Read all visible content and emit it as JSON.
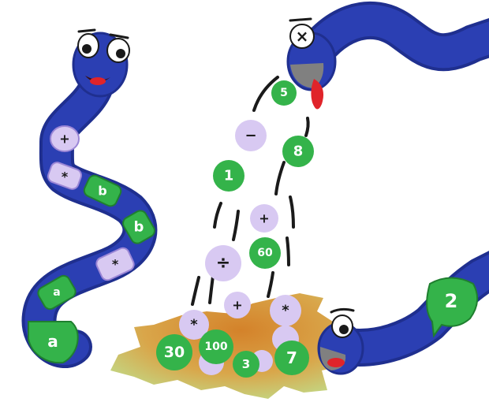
{
  "colors": {
    "snake_blue": "#2b3fb3",
    "snake_dark": "#1f2f8f",
    "tile_green": "#34b34a",
    "tile_purple": "#d8c9f2",
    "tongue_red": "#e0242a",
    "splat_orange": "#d88a30",
    "splat_green": "#b7dd8a"
  },
  "left_snake": {
    "segments": [
      "+",
      "*",
      "b",
      "b",
      "*",
      "a",
      "a"
    ]
  },
  "top_snake": {
    "operator": "×"
  },
  "bottom_snake": {
    "tail_value": "2"
  },
  "falling": {
    "tiles": [
      {
        "kind": "number",
        "label": "5"
      },
      {
        "kind": "operator",
        "label": "−"
      },
      {
        "kind": "number",
        "label": "8"
      },
      {
        "kind": "number",
        "label": "1"
      },
      {
        "kind": "operator",
        "label": "+"
      },
      {
        "kind": "number",
        "label": "60"
      },
      {
        "kind": "operator",
        "label": "÷"
      },
      {
        "kind": "operator",
        "label": "+"
      },
      {
        "kind": "operator",
        "label": "*"
      }
    ]
  },
  "pile": {
    "tiles": [
      {
        "kind": "operator",
        "label": "*"
      },
      {
        "kind": "number",
        "label": "30"
      },
      {
        "kind": "number",
        "label": "100"
      },
      {
        "kind": "number",
        "label": "3"
      },
      {
        "kind": "number",
        "label": "7"
      }
    ]
  }
}
